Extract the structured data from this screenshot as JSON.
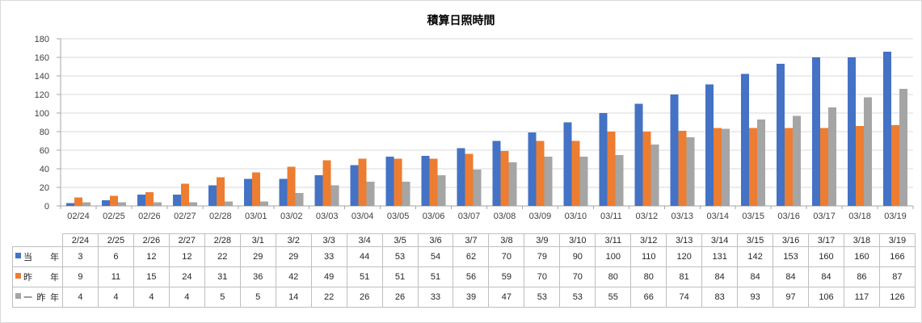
{
  "chart_data": {
    "type": "bar",
    "title": "積算日照時間",
    "categories": [
      "02/24",
      "02/25",
      "02/26",
      "02/27",
      "02/28",
      "03/01",
      "03/02",
      "03/03",
      "03/04",
      "03/05",
      "03/06",
      "03/07",
      "03/08",
      "03/09",
      "03/10",
      "03/11",
      "03/12",
      "03/13",
      "03/14",
      "03/15",
      "03/16",
      "03/17",
      "03/18",
      "03/19"
    ],
    "table_categories": [
      "2/24",
      "2/25",
      "2/26",
      "2/27",
      "2/28",
      "3/1",
      "3/2",
      "3/3",
      "3/4",
      "3/5",
      "3/6",
      "3/7",
      "3/8",
      "3/9",
      "3/10",
      "3/11",
      "3/12",
      "3/13",
      "3/14",
      "3/15",
      "3/16",
      "3/17",
      "3/18",
      "3/19"
    ],
    "series": [
      {
        "name": "当　年",
        "color": "#4472C4",
        "values": [
          3,
          6,
          12,
          12,
          22,
          29,
          29,
          33,
          44,
          53,
          54,
          62,
          70,
          79,
          90,
          100,
          110,
          120,
          131,
          142,
          153,
          160,
          160,
          166
        ]
      },
      {
        "name": "昨　年",
        "color": "#ED7D31",
        "values": [
          9,
          11,
          15,
          24,
          31,
          36,
          42,
          49,
          51,
          51,
          51,
          56,
          59,
          70,
          70,
          80,
          80,
          81,
          84,
          84,
          84,
          84,
          86,
          87
        ]
      },
      {
        "name": "一昨年",
        "color": "#A5A5A5",
        "values": [
          4,
          4,
          4,
          4,
          5,
          5,
          14,
          22,
          26,
          26,
          33,
          39,
          47,
          53,
          53,
          55,
          66,
          74,
          83,
          93,
          97,
          106,
          117,
          126
        ]
      }
    ],
    "ylim": [
      0,
      180
    ],
    "yticks": [
      0,
      20,
      40,
      60,
      80,
      100,
      120,
      140,
      160,
      180
    ],
    "xlabel": "",
    "ylabel": "",
    "grid": true,
    "legend_position": "table-row-labels",
    "colors": {
      "gridline": "#D9D9D9",
      "axis": "#A6A6A6",
      "tick_text": "#404040",
      "table_border": "#BFBFBF",
      "table_text": "#262626",
      "chart_border": "#D9D9D9",
      "title_text": "#000000",
      "background": "#FFFFFF"
    }
  }
}
